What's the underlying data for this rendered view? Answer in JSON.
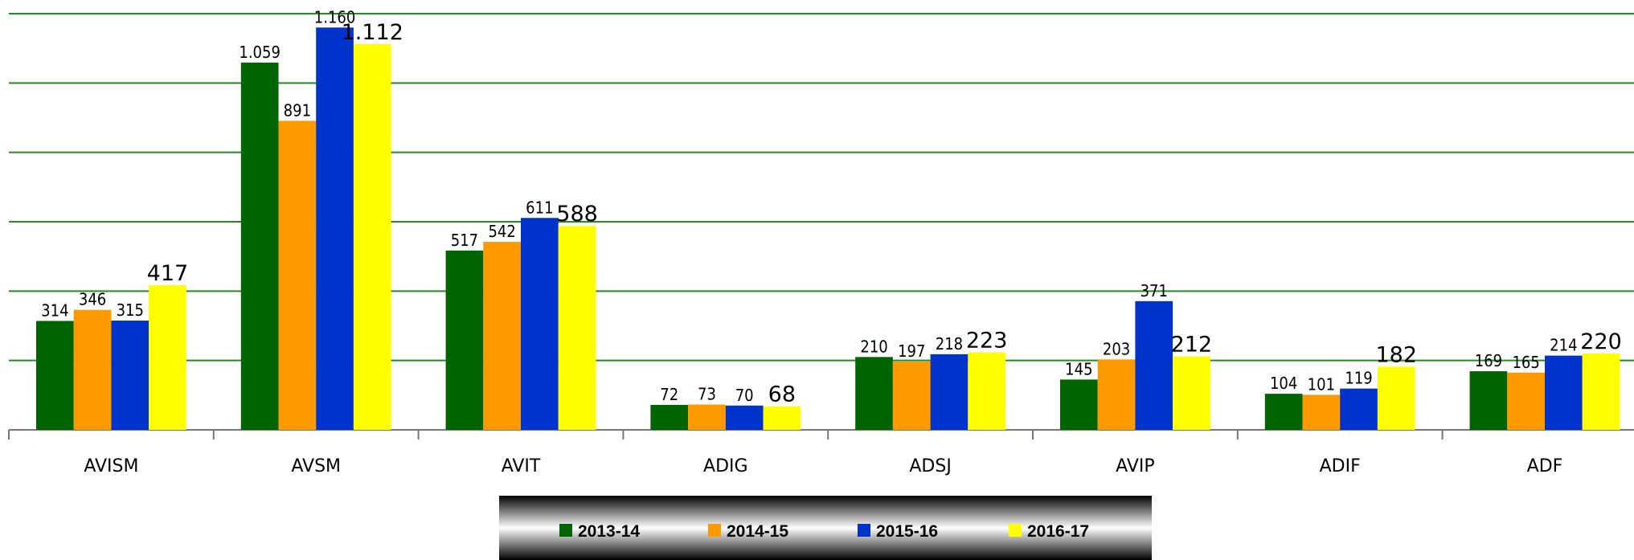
{
  "chart_data": {
    "type": "bar",
    "categories": [
      "AVISM",
      "AVSM",
      "AVIT",
      "ADIG",
      "ADSJ",
      "AVIP",
      "ADIF",
      "ADF"
    ],
    "series": [
      {
        "name": "2013-14",
        "color": "#006400",
        "values": [
          314,
          1059,
          517,
          72,
          210,
          145,
          104,
          169
        ],
        "value_labels": [
          "314",
          "1.059",
          "517",
          "72",
          "210",
          "145",
          "104",
          "169"
        ]
      },
      {
        "name": "2014-15",
        "color": "#ff9900",
        "values": [
          346,
          891,
          542,
          73,
          197,
          203,
          101,
          165
        ]
      },
      {
        "name": "2015-16",
        "color": "#0033cc",
        "values": [
          315,
          1160,
          611,
          70,
          218,
          371,
          119,
          214
        ],
        "value_labels": [
          "315",
          "1.160",
          "611",
          "70",
          "218",
          "371",
          "119",
          "214"
        ]
      },
      {
        "name": "2016-17",
        "color": "#ffff00",
        "values": [
          417,
          1112,
          588,
          68,
          223,
          212,
          182,
          220
        ],
        "value_labels": [
          "417",
          "1.112",
          "588",
          "68",
          "223",
          "212",
          "182",
          "220"
        ]
      }
    ],
    "ylim": [
      0,
      1200
    ],
    "yticks": [
      0,
      200,
      400,
      600,
      800,
      1000,
      1200
    ],
    "grid": true,
    "grid_color": "#228b22",
    "legend": "bottom"
  }
}
